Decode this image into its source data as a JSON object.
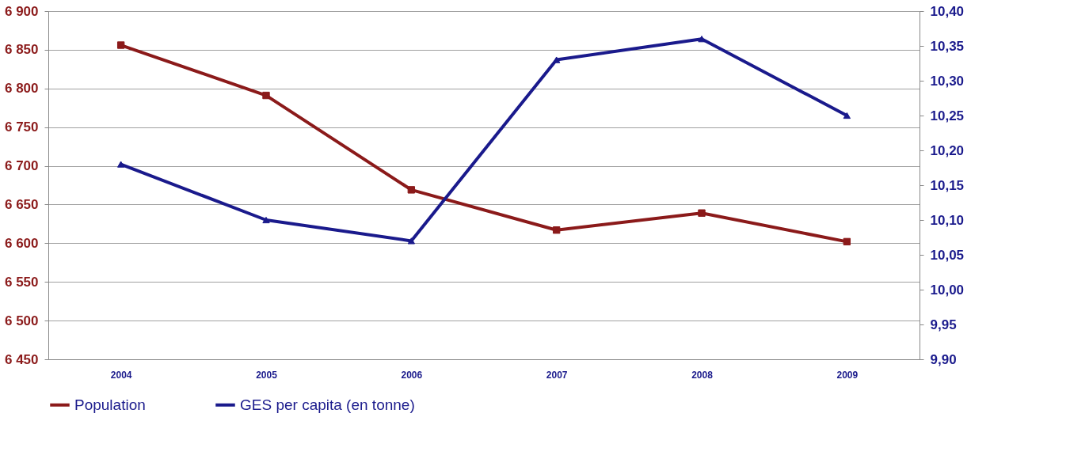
{
  "chart_data": {
    "type": "line",
    "categories": [
      "2004",
      "2005",
      "2006",
      "2007",
      "2008",
      "2009"
    ],
    "series": [
      {
        "name": "Population",
        "color": "#8b1a1a",
        "marker": "square",
        "values": [
          6856,
          6791,
          6669,
          6617,
          6639,
          6602
        ]
      },
      {
        "name": "GES per capita (en tonne)",
        "color": "#1a1a8c",
        "marker": "triangle",
        "axis": "y2",
        "values": [
          10.18,
          10.1,
          10.07,
          10.33,
          10.36,
          10.25
        ]
      }
    ],
    "ylim": [
      6450,
      6900
    ],
    "yticks": [
      {
        "value": 6450,
        "label": "6 450"
      },
      {
        "value": 6500,
        "label": "6 500"
      },
      {
        "value": 6550,
        "label": "6 550"
      },
      {
        "value": 6600,
        "label": "6 600"
      },
      {
        "value": 6650,
        "label": "6 650"
      },
      {
        "value": 6700,
        "label": "6 700"
      },
      {
        "value": 6750,
        "label": "6 750"
      },
      {
        "value": 6800,
        "label": "6 800"
      },
      {
        "value": 6850,
        "label": "6 850"
      },
      {
        "value": 6900,
        "label": "6 900"
      }
    ],
    "y2lim": [
      9.9,
      10.4
    ],
    "y2ticks": [
      {
        "value": 9.9,
        "label": "9,90"
      },
      {
        "value": 9.95,
        "label": "9,95"
      },
      {
        "value": 10.0,
        "label": "10,00"
      },
      {
        "value": 10.05,
        "label": "10,05"
      },
      {
        "value": 10.1,
        "label": "10,10"
      },
      {
        "value": 10.15,
        "label": "10,15"
      },
      {
        "value": 10.2,
        "label": "10,20"
      },
      {
        "value": 10.25,
        "label": "10,25"
      },
      {
        "value": 10.3,
        "label": "10,30"
      },
      {
        "value": 10.35,
        "label": "10,35"
      },
      {
        "value": 10.4,
        "label": "10,40"
      }
    ],
    "grid": "y",
    "legend": "bottom",
    "line_style": "solid"
  }
}
